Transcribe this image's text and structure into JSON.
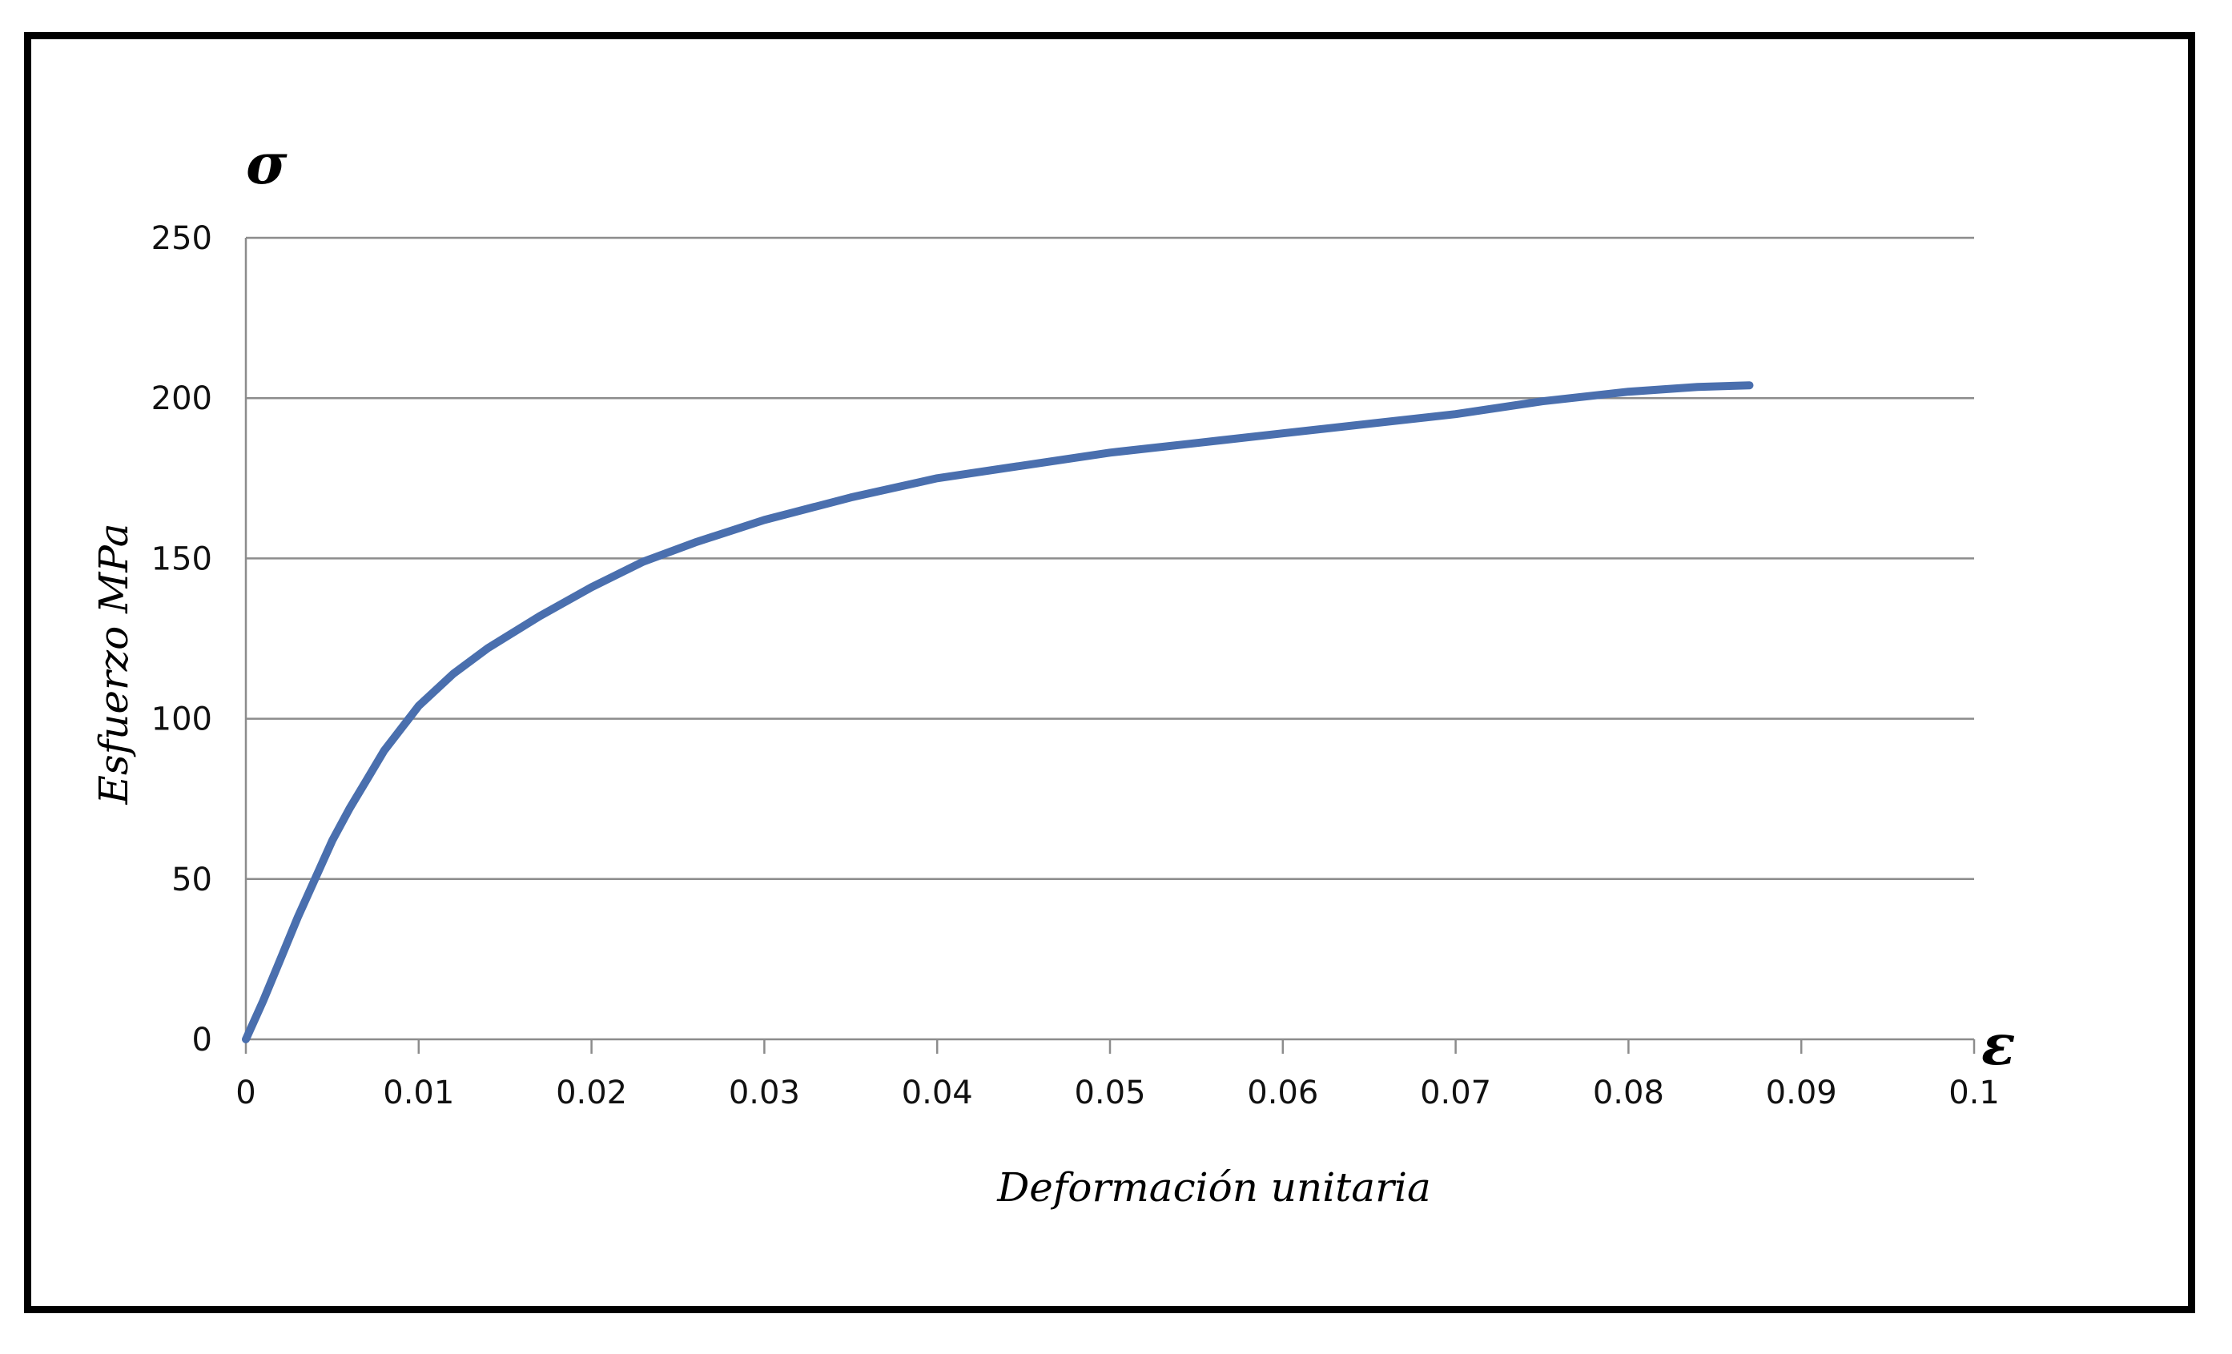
{
  "chart_data": {
    "type": "line",
    "title": "",
    "xlabel": "Deformación unitaria",
    "ylabel": "Esfuerzo MPa",
    "x_symbol": "ε",
    "y_symbol": "σ",
    "xlim": [
      0,
      0.1
    ],
    "ylim": [
      0,
      250
    ],
    "x_ticks": [
      "0",
      "0.01",
      "0.02",
      "0.03",
      "0.04",
      "0.05",
      "0.06",
      "0.07",
      "0.08",
      "0.09",
      "0.1"
    ],
    "y_ticks": [
      "0",
      "50",
      "100",
      "150",
      "200",
      "250"
    ],
    "grid": "horizontal",
    "legend": "none",
    "series": [
      {
        "color": "#4A6FAE",
        "x": [
          0,
          0.001,
          0.002,
          0.003,
          0.004,
          0.005,
          0.006,
          0.007,
          0.008,
          0.009,
          0.01,
          0.012,
          0.014,
          0.017,
          0.02,
          0.023,
          0.026,
          0.03,
          0.035,
          0.04,
          0.045,
          0.05,
          0.055,
          0.06,
          0.065,
          0.07,
          0.075,
          0.08,
          0.084,
          0.087
        ],
        "y": [
          0,
          12,
          25,
          38,
          50,
          62,
          72,
          81,
          90,
          97,
          104,
          114,
          122,
          132,
          141,
          149,
          155,
          162,
          169,
          175,
          179,
          183,
          186,
          189,
          192,
          195,
          199,
          202,
          203.5,
          204
        ]
      }
    ]
  }
}
